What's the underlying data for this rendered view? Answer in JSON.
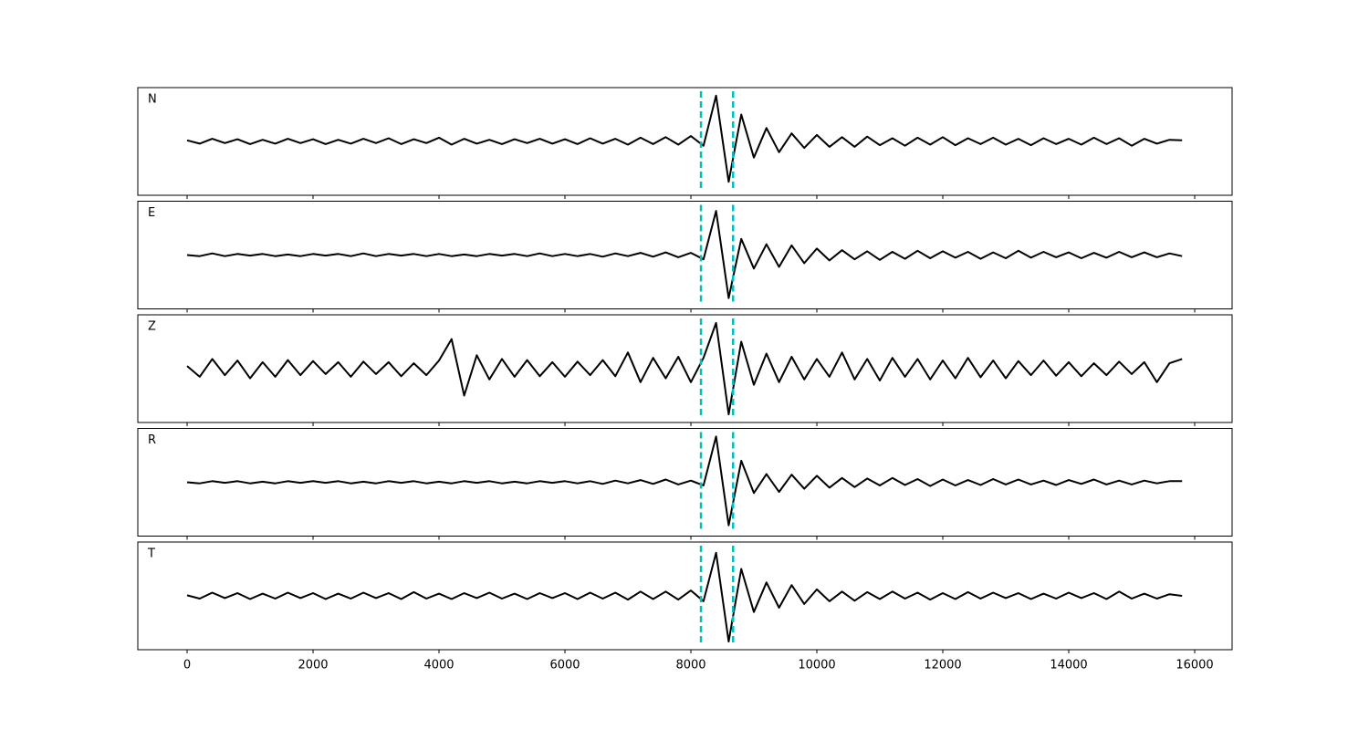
{
  "chart_data": {
    "type": "line",
    "x": [
      0,
      200,
      400,
      600,
      800,
      1000,
      1200,
      1400,
      1600,
      1800,
      2000,
      2200,
      2400,
      2600,
      2800,
      3000,
      3200,
      3400,
      3600,
      3800,
      4000,
      4200,
      4400,
      4600,
      4800,
      5000,
      5200,
      5400,
      5600,
      5800,
      6000,
      6200,
      6400,
      6600,
      6800,
      7000,
      7200,
      7400,
      7600,
      7800,
      8000,
      8200,
      8400,
      8600,
      8800,
      9000,
      9200,
      9400,
      9600,
      9800,
      10000,
      10200,
      10400,
      10600,
      10800,
      11000,
      11200,
      11400,
      11600,
      11800,
      12000,
      12200,
      12400,
      12600,
      12800,
      13000,
      13200,
      13400,
      13600,
      13800,
      14000,
      14200,
      14400,
      14600,
      14800,
      15000,
      15200,
      15400,
      15600,
      15800
    ],
    "series": [
      {
        "name": "N",
        "color": "#000000",
        "values": [
          0.02,
          -0.04,
          0.05,
          -0.03,
          0.04,
          -0.05,
          0.03,
          -0.04,
          0.05,
          -0.03,
          0.04,
          -0.05,
          0.03,
          -0.04,
          0.05,
          -0.03,
          0.06,
          -0.05,
          0.04,
          -0.03,
          0.07,
          -0.06,
          0.05,
          -0.04,
          0.03,
          -0.05,
          0.04,
          -0.03,
          0.05,
          -0.04,
          0.04,
          -0.05,
          0.06,
          -0.04,
          0.05,
          -0.06,
          0.07,
          -0.05,
          0.08,
          -0.06,
          0.1,
          -0.08,
          0.85,
          -0.75,
          0.5,
          -0.3,
          0.25,
          -0.2,
          0.15,
          -0.12,
          0.12,
          -0.1,
          0.08,
          -0.1,
          0.09,
          -0.07,
          0.06,
          -0.08,
          0.07,
          -0.06,
          0.08,
          -0.07,
          0.06,
          -0.05,
          0.07,
          -0.06,
          0.05,
          -0.07,
          0.06,
          -0.05,
          0.05,
          -0.06,
          0.07,
          -0.05,
          0.06,
          -0.08,
          0.05,
          -0.04,
          0.03,
          0.02
        ]
      },
      {
        "name": "E",
        "color": "#000000",
        "values": [
          0.0,
          -0.02,
          0.03,
          -0.02,
          0.02,
          -0.01,
          0.02,
          -0.02,
          0.01,
          -0.02,
          0.02,
          -0.01,
          0.02,
          -0.02,
          0.03,
          -0.02,
          0.02,
          -0.01,
          0.02,
          -0.02,
          0.02,
          -0.02,
          0.01,
          -0.02,
          0.02,
          -0.01,
          0.02,
          -0.02,
          0.03,
          -0.02,
          0.02,
          -0.02,
          0.02,
          -0.03,
          0.03,
          -0.02,
          0.04,
          -0.03,
          0.05,
          -0.04,
          0.04,
          -0.08,
          0.82,
          -0.8,
          0.3,
          -0.25,
          0.2,
          -0.22,
          0.18,
          -0.15,
          0.12,
          -0.1,
          0.09,
          -0.08,
          0.07,
          -0.09,
          0.06,
          -0.07,
          0.08,
          -0.06,
          0.07,
          -0.05,
          0.06,
          -0.07,
          0.05,
          -0.06,
          0.08,
          -0.05,
          0.06,
          -0.04,
          0.05,
          -0.06,
          0.04,
          -0.05,
          0.06,
          -0.04,
          0.05,
          -0.04,
          0.03,
          -0.02
        ]
      },
      {
        "name": "Z",
        "color": "#000000",
        "values": [
          0.05,
          -0.15,
          0.18,
          -0.12,
          0.15,
          -0.18,
          0.12,
          -0.15,
          0.16,
          -0.12,
          0.14,
          -0.1,
          0.12,
          -0.15,
          0.13,
          -0.1,
          0.12,
          -0.14,
          0.1,
          -0.12,
          0.15,
          0.55,
          -0.5,
          0.25,
          -0.2,
          0.18,
          -0.15,
          0.16,
          -0.14,
          0.12,
          -0.15,
          0.13,
          -0.12,
          0.16,
          -0.14,
          0.3,
          -0.25,
          0.2,
          -0.18,
          0.22,
          -0.25,
          0.2,
          0.85,
          -0.85,
          0.5,
          -0.3,
          0.28,
          -0.25,
          0.22,
          -0.2,
          0.18,
          -0.15,
          0.3,
          -0.2,
          0.18,
          -0.22,
          0.2,
          -0.15,
          0.18,
          -0.2,
          0.15,
          -0.18,
          0.2,
          -0.16,
          0.15,
          -0.18,
          0.14,
          -0.12,
          0.15,
          -0.13,
          0.12,
          -0.14,
          0.1,
          -0.12,
          0.13,
          -0.1,
          0.12,
          -0.25,
          0.1,
          0.18
        ]
      },
      {
        "name": "R",
        "color": "#000000",
        "values": [
          0.0,
          -0.02,
          0.02,
          -0.01,
          0.02,
          -0.02,
          0.01,
          -0.02,
          0.02,
          -0.01,
          0.02,
          -0.01,
          0.02,
          -0.02,
          0.01,
          -0.02,
          0.02,
          -0.01,
          0.02,
          -0.02,
          0.01,
          -0.02,
          0.02,
          -0.01,
          0.02,
          -0.02,
          0.01,
          -0.02,
          0.02,
          -0.01,
          0.02,
          -0.02,
          0.02,
          -0.03,
          0.03,
          -0.02,
          0.04,
          -0.03,
          0.05,
          -0.04,
          0.03,
          -0.06,
          0.85,
          -0.8,
          0.4,
          -0.2,
          0.15,
          -0.18,
          0.14,
          -0.12,
          0.12,
          -0.1,
          0.08,
          -0.09,
          0.07,
          -0.06,
          0.08,
          -0.05,
          0.06,
          -0.07,
          0.05,
          -0.06,
          0.04,
          -0.05,
          0.06,
          -0.04,
          0.05,
          -0.04,
          0.03,
          -0.05,
          0.04,
          -0.03,
          0.05,
          -0.04,
          0.03,
          -0.04,
          0.03,
          -0.02,
          0.02,
          0.02
        ]
      },
      {
        "name": "T",
        "color": "#000000",
        "values": [
          0.01,
          -0.05,
          0.06,
          -0.04,
          0.05,
          -0.06,
          0.04,
          -0.05,
          0.06,
          -0.04,
          0.05,
          -0.06,
          0.04,
          -0.05,
          0.06,
          -0.04,
          0.05,
          -0.06,
          0.07,
          -0.05,
          0.04,
          -0.06,
          0.05,
          -0.04,
          0.06,
          -0.05,
          0.04,
          -0.06,
          0.05,
          -0.04,
          0.05,
          -0.06,
          0.06,
          -0.05,
          0.06,
          -0.07,
          0.08,
          -0.06,
          0.08,
          -0.07,
          0.1,
          -0.1,
          0.8,
          -0.85,
          0.5,
          -0.3,
          0.25,
          -0.22,
          0.2,
          -0.15,
          0.12,
          -0.1,
          0.08,
          -0.09,
          0.07,
          -0.06,
          0.08,
          -0.05,
          0.06,
          -0.07,
          0.05,
          -0.06,
          0.07,
          -0.05,
          0.06,
          -0.04,
          0.05,
          -0.06,
          0.04,
          -0.05,
          0.06,
          -0.04,
          0.05,
          -0.06,
          0.08,
          -0.05,
          0.04,
          -0.05,
          0.03,
          0.0
        ]
      }
    ],
    "markers": [
      8160,
      8670
    ],
    "marker_color": "#00bfbf",
    "xlim": [
      -783,
      16594
    ],
    "xticks": [
      0,
      2000,
      4000,
      6000,
      8000,
      10000,
      12000,
      14000,
      16000
    ],
    "ylim": [
      -1,
      1
    ]
  }
}
